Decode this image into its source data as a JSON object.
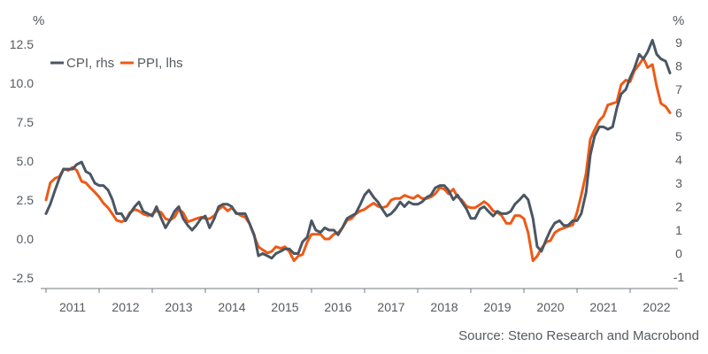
{
  "chart_data": {
    "type": "line",
    "left_axis": {
      "unit": "%",
      "ticks": [
        "12.5",
        "10.0",
        "7.5",
        "5.0",
        "2.5",
        "0.0",
        "-2.5"
      ],
      "ylim": [
        -2.5,
        12.5
      ]
    },
    "right_axis": {
      "unit": "%",
      "ticks": [
        "9",
        "8",
        "7",
        "6",
        "5",
        "4",
        "3",
        "2",
        "1",
        "0",
        "-1"
      ],
      "ylim": [
        -1,
        9
      ]
    },
    "x_axis": {
      "ticks": [
        "2011",
        "2012",
        "2013",
        "2014",
        "2015",
        "2016",
        "2017",
        "2018",
        "2019",
        "2020",
        "2021",
        "2022"
      ],
      "range": [
        2010.9,
        2022.9
      ]
    },
    "legend_position": "top-left",
    "grid": false,
    "source": "Source: Steno Research and Macrobond",
    "series": [
      {
        "name": "CPI, rhs",
        "axis": "right",
        "color": "#4a5663",
        "points": [
          [
            2011.0,
            1.7
          ],
          [
            2011.08,
            2.1
          ],
          [
            2011.17,
            2.7
          ],
          [
            2011.25,
            3.2
          ],
          [
            2011.33,
            3.6
          ],
          [
            2011.42,
            3.6
          ],
          [
            2011.5,
            3.6
          ],
          [
            2011.58,
            3.8
          ],
          [
            2011.67,
            3.9
          ],
          [
            2011.75,
            3.5
          ],
          [
            2011.83,
            3.4
          ],
          [
            2011.92,
            3.0
          ],
          [
            2012.0,
            2.9
          ],
          [
            2012.08,
            2.9
          ],
          [
            2012.17,
            2.7
          ],
          [
            2012.25,
            2.3
          ],
          [
            2012.33,
            1.7
          ],
          [
            2012.42,
            1.7
          ],
          [
            2012.5,
            1.4
          ],
          [
            2012.58,
            1.7
          ],
          [
            2012.67,
            2.0
          ],
          [
            2012.75,
            2.2
          ],
          [
            2012.83,
            1.8
          ],
          [
            2012.92,
            1.7
          ],
          [
            2013.0,
            1.6
          ],
          [
            2013.08,
            2.0
          ],
          [
            2013.17,
            1.5
          ],
          [
            2013.25,
            1.1
          ],
          [
            2013.33,
            1.4
          ],
          [
            2013.42,
            1.8
          ],
          [
            2013.5,
            2.0
          ],
          [
            2013.58,
            1.5
          ],
          [
            2013.67,
            1.2
          ],
          [
            2013.75,
            1.0
          ],
          [
            2013.83,
            1.2
          ],
          [
            2013.92,
            1.5
          ],
          [
            2014.0,
            1.6
          ],
          [
            2014.08,
            1.1
          ],
          [
            2014.17,
            1.5
          ],
          [
            2014.25,
            2.0
          ],
          [
            2014.33,
            2.1
          ],
          [
            2014.42,
            2.1
          ],
          [
            2014.5,
            2.0
          ],
          [
            2014.58,
            1.7
          ],
          [
            2014.67,
            1.7
          ],
          [
            2014.75,
            1.7
          ],
          [
            2014.83,
            1.3
          ],
          [
            2014.92,
            0.8
          ],
          [
            2015.0,
            -0.1
          ],
          [
            2015.08,
            0.0
          ],
          [
            2015.17,
            -0.1
          ],
          [
            2015.25,
            -0.2
          ],
          [
            2015.33,
            0.0
          ],
          [
            2015.42,
            0.1
          ],
          [
            2015.5,
            0.2
          ],
          [
            2015.58,
            0.2
          ],
          [
            2015.67,
            0.0
          ],
          [
            2015.75,
            0.0
          ],
          [
            2015.83,
            0.5
          ],
          [
            2015.92,
            0.7
          ],
          [
            2016.0,
            1.4
          ],
          [
            2016.08,
            1.0
          ],
          [
            2016.17,
            0.9
          ],
          [
            2016.25,
            1.1
          ],
          [
            2016.33,
            1.0
          ],
          [
            2016.42,
            1.0
          ],
          [
            2016.5,
            0.8
          ],
          [
            2016.58,
            1.1
          ],
          [
            2016.67,
            1.5
          ],
          [
            2016.75,
            1.6
          ],
          [
            2016.83,
            1.7
          ],
          [
            2016.92,
            2.1
          ],
          [
            2017.0,
            2.5
          ],
          [
            2017.08,
            2.7
          ],
          [
            2017.17,
            2.4
          ],
          [
            2017.25,
            2.2
          ],
          [
            2017.33,
            1.9
          ],
          [
            2017.42,
            1.6
          ],
          [
            2017.5,
            1.7
          ],
          [
            2017.58,
            1.9
          ],
          [
            2017.67,
            2.2
          ],
          [
            2017.75,
            2.0
          ],
          [
            2017.83,
            2.2
          ],
          [
            2017.92,
            2.1
          ],
          [
            2018.0,
            2.1
          ],
          [
            2018.08,
            2.2
          ],
          [
            2018.17,
            2.4
          ],
          [
            2018.25,
            2.5
          ],
          [
            2018.33,
            2.8
          ],
          [
            2018.42,
            2.9
          ],
          [
            2018.5,
            2.9
          ],
          [
            2018.58,
            2.7
          ],
          [
            2018.67,
            2.3
          ],
          [
            2018.75,
            2.5
          ],
          [
            2018.83,
            2.2
          ],
          [
            2018.92,
            1.9
          ],
          [
            2019.0,
            1.5
          ],
          [
            2019.08,
            1.5
          ],
          [
            2019.17,
            1.9
          ],
          [
            2019.25,
            2.0
          ],
          [
            2019.33,
            1.8
          ],
          [
            2019.42,
            1.6
          ],
          [
            2019.5,
            1.8
          ],
          [
            2019.58,
            1.7
          ],
          [
            2019.67,
            1.7
          ],
          [
            2019.75,
            1.8
          ],
          [
            2019.83,
            2.1
          ],
          [
            2019.92,
            2.3
          ],
          [
            2020.0,
            2.5
          ],
          [
            2020.08,
            2.3
          ],
          [
            2020.17,
            1.5
          ],
          [
            2020.25,
            0.3
          ],
          [
            2020.33,
            0.1
          ],
          [
            2020.42,
            0.6
          ],
          [
            2020.5,
            1.0
          ],
          [
            2020.58,
            1.3
          ],
          [
            2020.67,
            1.4
          ],
          [
            2020.75,
            1.2
          ],
          [
            2020.83,
            1.2
          ],
          [
            2020.92,
            1.4
          ],
          [
            2021.0,
            1.4
          ],
          [
            2021.08,
            1.7
          ],
          [
            2021.17,
            2.6
          ],
          [
            2021.25,
            4.2
          ],
          [
            2021.33,
            5.0
          ],
          [
            2021.42,
            5.4
          ],
          [
            2021.5,
            5.4
          ],
          [
            2021.58,
            5.3
          ],
          [
            2021.67,
            5.4
          ],
          [
            2021.75,
            6.2
          ],
          [
            2021.83,
            6.8
          ],
          [
            2021.92,
            7.0
          ],
          [
            2022.0,
            7.5
          ],
          [
            2022.08,
            7.9
          ],
          [
            2022.17,
            8.5
          ],
          [
            2022.25,
            8.3
          ],
          [
            2022.33,
            8.6
          ],
          [
            2022.42,
            9.1
          ],
          [
            2022.5,
            8.5
          ],
          [
            2022.58,
            8.3
          ],
          [
            2022.67,
            8.2
          ],
          [
            2022.75,
            7.7
          ]
        ]
      },
      {
        "name": "PPI, lhs",
        "axis": "left",
        "color": "#ee5a16",
        "points": [
          [
            2011.0,
            2.5
          ],
          [
            2011.08,
            3.6
          ],
          [
            2011.17,
            3.9
          ],
          [
            2011.25,
            4.0
          ],
          [
            2011.33,
            4.5
          ],
          [
            2011.42,
            4.4
          ],
          [
            2011.5,
            4.6
          ],
          [
            2011.58,
            4.4
          ],
          [
            2011.67,
            3.7
          ],
          [
            2011.75,
            3.6
          ],
          [
            2011.83,
            3.3
          ],
          [
            2011.92,
            3.0
          ],
          [
            2012.0,
            2.7
          ],
          [
            2012.08,
            2.3
          ],
          [
            2012.17,
            2.0
          ],
          [
            2012.25,
            1.6
          ],
          [
            2012.33,
            1.2
          ],
          [
            2012.42,
            1.1
          ],
          [
            2012.5,
            1.2
          ],
          [
            2012.58,
            1.7
          ],
          [
            2012.67,
            1.9
          ],
          [
            2012.75,
            1.8
          ],
          [
            2012.83,
            1.6
          ],
          [
            2012.92,
            1.5
          ],
          [
            2013.0,
            1.6
          ],
          [
            2013.08,
            1.8
          ],
          [
            2013.17,
            1.7
          ],
          [
            2013.25,
            1.3
          ],
          [
            2013.33,
            1.2
          ],
          [
            2013.42,
            1.4
          ],
          [
            2013.5,
            1.9
          ],
          [
            2013.58,
            1.7
          ],
          [
            2013.67,
            1.1
          ],
          [
            2013.75,
            1.2
          ],
          [
            2013.83,
            1.3
          ],
          [
            2013.92,
            1.4
          ],
          [
            2014.0,
            1.3
          ],
          [
            2014.08,
            1.3
          ],
          [
            2014.17,
            1.5
          ],
          [
            2014.25,
            1.9
          ],
          [
            2014.33,
            2.1
          ],
          [
            2014.42,
            1.8
          ],
          [
            2014.5,
            2.0
          ],
          [
            2014.58,
            1.7
          ],
          [
            2014.67,
            1.5
          ],
          [
            2014.75,
            1.4
          ],
          [
            2014.83,
            1.0
          ],
          [
            2014.92,
            0.2
          ],
          [
            2015.0,
            -0.5
          ],
          [
            2015.08,
            -0.7
          ],
          [
            2015.17,
            -0.9
          ],
          [
            2015.25,
            -0.8
          ],
          [
            2015.33,
            -0.5
          ],
          [
            2015.42,
            -0.6
          ],
          [
            2015.5,
            -0.5
          ],
          [
            2015.58,
            -0.8
          ],
          [
            2015.67,
            -1.4
          ],
          [
            2015.75,
            -1.1
          ],
          [
            2015.83,
            -1.0
          ],
          [
            2015.92,
            -0.2
          ],
          [
            2016.0,
            0.3
          ],
          [
            2016.08,
            0.3
          ],
          [
            2016.17,
            0.3
          ],
          [
            2016.25,
            0.0
          ],
          [
            2016.33,
            0.0
          ],
          [
            2016.42,
            0.3
          ],
          [
            2016.5,
            0.4
          ],
          [
            2016.58,
            0.7
          ],
          [
            2016.67,
            1.2
          ],
          [
            2016.75,
            1.3
          ],
          [
            2016.83,
            1.6
          ],
          [
            2016.92,
            1.8
          ],
          [
            2017.0,
            1.9
          ],
          [
            2017.08,
            2.1
          ],
          [
            2017.17,
            2.3
          ],
          [
            2017.25,
            2.1
          ],
          [
            2017.33,
            2.0
          ],
          [
            2017.42,
            2.1
          ],
          [
            2017.5,
            2.5
          ],
          [
            2017.58,
            2.6
          ],
          [
            2017.67,
            2.6
          ],
          [
            2017.75,
            2.8
          ],
          [
            2017.83,
            2.7
          ],
          [
            2017.92,
            2.6
          ],
          [
            2018.0,
            2.8
          ],
          [
            2018.08,
            2.6
          ],
          [
            2018.17,
            2.6
          ],
          [
            2018.25,
            2.7
          ],
          [
            2018.33,
            2.9
          ],
          [
            2018.42,
            3.3
          ],
          [
            2018.5,
            3.2
          ],
          [
            2018.58,
            2.9
          ],
          [
            2018.67,
            3.2
          ],
          [
            2018.75,
            2.7
          ],
          [
            2018.83,
            2.5
          ],
          [
            2018.92,
            2.1
          ],
          [
            2019.0,
            2.0
          ],
          [
            2019.08,
            2.0
          ],
          [
            2019.17,
            2.2
          ],
          [
            2019.25,
            2.4
          ],
          [
            2019.33,
            2.2
          ],
          [
            2019.42,
            1.8
          ],
          [
            2019.5,
            1.7
          ],
          [
            2019.58,
            1.5
          ],
          [
            2019.67,
            1.0
          ],
          [
            2019.75,
            1.0
          ],
          [
            2019.83,
            1.5
          ],
          [
            2019.92,
            1.5
          ],
          [
            2020.0,
            1.3
          ],
          [
            2020.08,
            0.4
          ],
          [
            2020.17,
            -1.4
          ],
          [
            2020.25,
            -1.1
          ],
          [
            2020.33,
            -0.6
          ],
          [
            2020.42,
            -0.2
          ],
          [
            2020.5,
            -0.1
          ],
          [
            2020.58,
            0.4
          ],
          [
            2020.67,
            0.6
          ],
          [
            2020.75,
            0.7
          ],
          [
            2020.83,
            0.8
          ],
          [
            2020.92,
            0.9
          ],
          [
            2021.0,
            1.7
          ],
          [
            2021.08,
            2.8
          ],
          [
            2021.17,
            4.2
          ],
          [
            2021.25,
            6.4
          ],
          [
            2021.33,
            7.0
          ],
          [
            2021.42,
            7.6
          ],
          [
            2021.5,
            7.9
          ],
          [
            2021.58,
            8.6
          ],
          [
            2021.67,
            8.7
          ],
          [
            2021.75,
            8.8
          ],
          [
            2021.83,
            9.9
          ],
          [
            2021.92,
            10.2
          ],
          [
            2022.0,
            10.1
          ],
          [
            2022.08,
            10.8
          ],
          [
            2022.17,
            11.2
          ],
          [
            2022.25,
            11.6
          ],
          [
            2022.33,
            11.0
          ],
          [
            2022.42,
            11.2
          ],
          [
            2022.5,
            9.8
          ],
          [
            2022.58,
            8.7
          ],
          [
            2022.67,
            8.5
          ],
          [
            2022.75,
            8.1
          ]
        ]
      }
    ]
  }
}
